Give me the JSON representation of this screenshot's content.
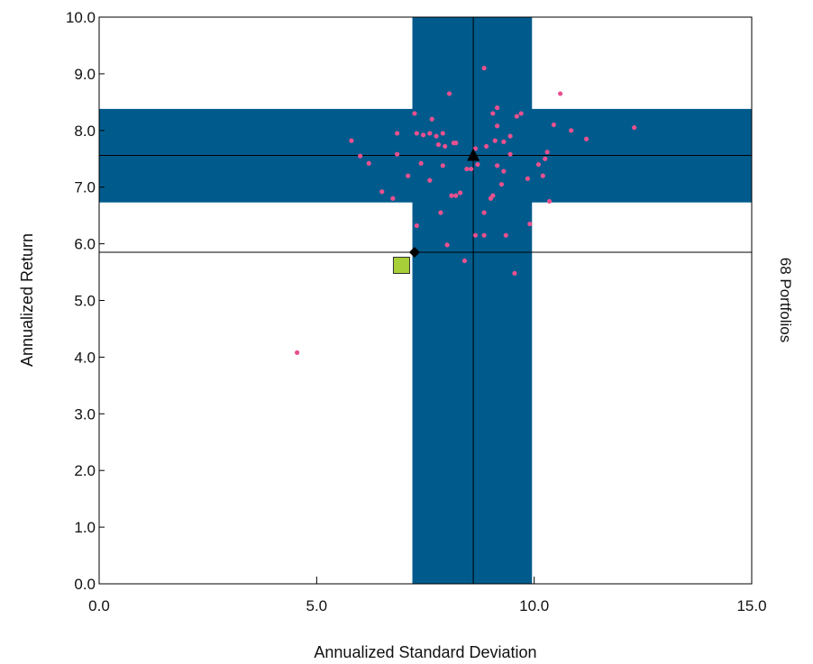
{
  "chart_data": {
    "type": "scatter",
    "xlabel": "Annualized Standard Deviation",
    "ylabel": "Annualized Return",
    "side_label": "68 Portfolios",
    "xlim": [
      0,
      15
    ],
    "ylim": [
      0,
      10
    ],
    "x_ticks": [
      0,
      5,
      10,
      15
    ],
    "y_ticks": [
      0,
      1,
      2,
      3,
      4,
      5,
      6,
      7,
      8,
      9,
      10
    ],
    "x_tick_labels": [
      "0.0",
      "5.0",
      "10.0",
      "15.0"
    ],
    "y_tick_labels": [
      "0.0",
      "1.0",
      "2.0",
      "3.0",
      "4.0",
      "5.0",
      "6.0",
      "7.0",
      "8.0",
      "9.0",
      "10.0"
    ],
    "grid": false,
    "band_color": "#005b8c",
    "point_color": "#e8508f",
    "benchmark_color": "#a6cf38",
    "vertical_band": {
      "x_from": 7.2,
      "x_to": 9.95
    },
    "horizontal_band": {
      "y_from": 6.73,
      "y_to": 8.38
    },
    "reference_lines": {
      "x": 8.6,
      "y_upper": 7.56,
      "y_lower": 5.85
    },
    "markers": {
      "triangle": {
        "x": 8.6,
        "y": 7.56
      },
      "diamond": {
        "x": 7.25,
        "y": 5.85
      },
      "square": {
        "x": 6.95,
        "y": 5.62
      }
    },
    "points": [
      [
        4.55,
        4.08
      ],
      [
        5.8,
        7.82
      ],
      [
        6.0,
        7.55
      ],
      [
        6.2,
        7.42
      ],
      [
        6.5,
        6.92
      ],
      [
        6.75,
        6.8
      ],
      [
        6.85,
        7.58
      ],
      [
        6.85,
        7.95
      ],
      [
        7.1,
        7.2
      ],
      [
        7.25,
        8.3
      ],
      [
        7.3,
        7.95
      ],
      [
        7.3,
        6.32
      ],
      [
        7.4,
        7.42
      ],
      [
        7.45,
        7.92
      ],
      [
        7.6,
        7.12
      ],
      [
        7.6,
        7.95
      ],
      [
        7.65,
        8.2
      ],
      [
        7.75,
        7.9
      ],
      [
        7.8,
        7.75
      ],
      [
        7.85,
        6.55
      ],
      [
        7.9,
        7.95
      ],
      [
        7.9,
        7.38
      ],
      [
        7.95,
        7.72
      ],
      [
        8.0,
        5.98
      ],
      [
        8.05,
        8.65
      ],
      [
        8.1,
        6.85
      ],
      [
        8.15,
        7.78
      ],
      [
        8.2,
        7.78
      ],
      [
        8.2,
        6.85
      ],
      [
        8.4,
        5.7
      ],
      [
        8.55,
        7.32
      ],
      [
        8.65,
        7.68
      ],
      [
        8.65,
        6.15
      ],
      [
        8.7,
        7.4
      ],
      [
        8.85,
        9.1
      ],
      [
        8.85,
        6.55
      ],
      [
        8.85,
        6.15
      ],
      [
        8.9,
        7.72
      ],
      [
        9.0,
        6.8
      ],
      [
        9.05,
        6.85
      ],
      [
        9.05,
        8.3
      ],
      [
        9.1,
        7.82
      ],
      [
        9.15,
        8.4
      ],
      [
        9.15,
        8.08
      ],
      [
        9.15,
        7.38
      ],
      [
        9.25,
        7.05
      ],
      [
        9.3,
        7.8
      ],
      [
        9.3,
        7.28
      ],
      [
        9.35,
        6.15
      ],
      [
        9.45,
        7.9
      ],
      [
        9.45,
        7.58
      ],
      [
        9.55,
        5.48
      ],
      [
        9.6,
        8.25
      ],
      [
        9.7,
        8.3
      ],
      [
        9.85,
        7.15
      ],
      [
        9.9,
        6.35
      ],
      [
        10.1,
        7.4
      ],
      [
        10.2,
        7.2
      ],
      [
        10.25,
        7.5
      ],
      [
        10.3,
        7.62
      ],
      [
        10.35,
        6.75
      ],
      [
        10.45,
        8.1
      ],
      [
        10.6,
        8.65
      ],
      [
        10.85,
        8.0
      ],
      [
        11.2,
        7.85
      ],
      [
        12.3,
        8.05
      ],
      [
        8.45,
        7.32
      ],
      [
        8.3,
        6.9
      ]
    ]
  }
}
